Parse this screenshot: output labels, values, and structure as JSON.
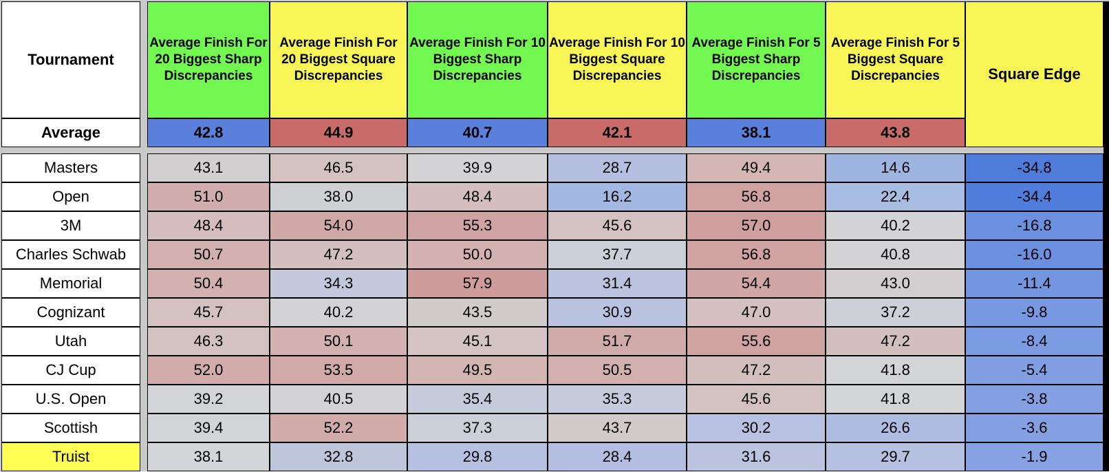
{
  "table": {
    "corner_header": "Tournament",
    "average_label": "Average",
    "square_edge_label": "Square Edge",
    "columns": [
      {
        "label": "Average Finish For 20 Biggest Sharp Discrepancies",
        "header_bg": "#72F850",
        "average": "42.8",
        "average_bg": "#5A80DC"
      },
      {
        "label": "Average Finish For 20 Biggest Square Discrepancies",
        "header_bg": "#F8F657",
        "average": "44.9",
        "average_bg": "#C96C69"
      },
      {
        "label": "Average Finish For 10 Biggest Sharp Discrepancies",
        "header_bg": "#72F850",
        "average": "40.7",
        "average_bg": "#5A80DC"
      },
      {
        "label": "Average Finish For 10 Biggest Square Discrepancies",
        "header_bg": "#F8F657",
        "average": "42.1",
        "average_bg": "#C96C69"
      },
      {
        "label": "Average Finish For 5 Biggest Sharp Discrepancies",
        "header_bg": "#72F850",
        "average": "38.1",
        "average_bg": "#5A80DC"
      },
      {
        "label": "Average Finish For 5 Biggest Square Discrepancies",
        "header_bg": "#F8F657",
        "average": "43.8",
        "average_bg": "#C96C69"
      }
    ],
    "square_edge_header_bg": "#F8F657",
    "rows": [
      {
        "tournament": "Masters",
        "label_bg": "#FFFFFF",
        "cells": [
          {
            "v": "43.1",
            "bg": "#D2CFD0"
          },
          {
            "v": "46.5",
            "bg": "#D4C1C1"
          },
          {
            "v": "39.9",
            "bg": "#D3D3D6"
          },
          {
            "v": "28.7",
            "bg": "#B5BFE0"
          },
          {
            "v": "49.4",
            "bg": "#D4B6B5"
          },
          {
            "v": "14.6",
            "bg": "#9EB5E1"
          }
        ],
        "square_edge": {
          "v": "-34.8",
          "bg": "#4F7CDB"
        }
      },
      {
        "tournament": "Open",
        "label_bg": "#FFFFFF",
        "cells": [
          {
            "v": "51.0",
            "bg": "#D1AEAD"
          },
          {
            "v": "38.0",
            "bg": "#CED0D4"
          },
          {
            "v": "48.4",
            "bg": "#D5BFBE"
          },
          {
            "v": "16.2",
            "bg": "#A2B8E1"
          },
          {
            "v": "56.8",
            "bg": "#D0A2A1"
          },
          {
            "v": "22.4",
            "bg": "#A9BDE2"
          }
        ],
        "square_edge": {
          "v": "-34.4",
          "bg": "#507CDB"
        }
      },
      {
        "tournament": "3M",
        "label_bg": "#FFFFFF",
        "cells": [
          {
            "v": "48.4",
            "bg": "#D4BDBC"
          },
          {
            "v": "54.0",
            "bg": "#D0A8A7"
          },
          {
            "v": "55.3",
            "bg": "#CFA3A3"
          },
          {
            "v": "45.6",
            "bg": "#D4C2C2"
          },
          {
            "v": "57.0",
            "bg": "#CF9F9F"
          },
          {
            "v": "40.2",
            "bg": "#D3D2D4"
          }
        ],
        "square_edge": {
          "v": "-16.8",
          "bg": "#6B90E0"
        }
      },
      {
        "tournament": "Charles Schwab",
        "label_bg": "#FFFFFF",
        "cells": [
          {
            "v": "50.7",
            "bg": "#D2B0AF"
          },
          {
            "v": "47.2",
            "bg": "#D4BFBF"
          },
          {
            "v": "50.0",
            "bg": "#D2B1B0"
          },
          {
            "v": "37.7",
            "bg": "#CBCFD7"
          },
          {
            "v": "56.8",
            "bg": "#D0A2A1"
          },
          {
            "v": "40.8",
            "bg": "#D3D3D5"
          }
        ],
        "square_edge": {
          "v": "-16.0",
          "bg": "#6C90E0"
        }
      },
      {
        "tournament": "Memorial",
        "label_bg": "#FFFFFF",
        "cells": [
          {
            "v": "50.4",
            "bg": "#D2B1B0"
          },
          {
            "v": "34.3",
            "bg": "#C3C8DC"
          },
          {
            "v": "57.9",
            "bg": "#CE9C9B"
          },
          {
            "v": "31.4",
            "bg": "#BBC3DF"
          },
          {
            "v": "54.4",
            "bg": "#D0A7A6"
          },
          {
            "v": "43.0",
            "bg": "#D2CED0"
          }
        ],
        "square_edge": {
          "v": "-11.4",
          "bg": "#7496E1"
        }
      },
      {
        "tournament": "Cognizant",
        "label_bg": "#FFFFFF",
        "cells": [
          {
            "v": "45.7",
            "bg": "#D4C1C1"
          },
          {
            "v": "40.2",
            "bg": "#D3D2D4"
          },
          {
            "v": "43.5",
            "bg": "#D2CBCC"
          },
          {
            "v": "30.9",
            "bg": "#B9C2DF"
          },
          {
            "v": "47.0",
            "bg": "#D4C0C0"
          },
          {
            "v": "37.2",
            "bg": "#CDD1D7"
          }
        ],
        "square_edge": {
          "v": "-9.8",
          "bg": "#7899E1"
        }
      },
      {
        "tournament": "Utah",
        "label_bg": "#FFFFFF",
        "cells": [
          {
            "v": "46.3",
            "bg": "#D4C2C2"
          },
          {
            "v": "50.1",
            "bg": "#D2B1B0"
          },
          {
            "v": "45.1",
            "bg": "#D4C4C4"
          },
          {
            "v": "51.7",
            "bg": "#D1ABAA"
          },
          {
            "v": "55.6",
            "bg": "#CFA3A2"
          },
          {
            "v": "47.2",
            "bg": "#D4BFBF"
          }
        ],
        "square_edge": {
          "v": "-8.4",
          "bg": "#7B9BE2"
        }
      },
      {
        "tournament": "CJ Cup",
        "label_bg": "#FFFFFF",
        "cells": [
          {
            "v": "52.0",
            "bg": "#D1ACAB"
          },
          {
            "v": "53.5",
            "bg": "#D0A9A8"
          },
          {
            "v": "49.5",
            "bg": "#D3B5B4"
          },
          {
            "v": "50.5",
            "bg": "#D2B0AF"
          },
          {
            "v": "47.2",
            "bg": "#D4BFBF"
          },
          {
            "v": "41.8",
            "bg": "#D3D4D6"
          }
        ],
        "square_edge": {
          "v": "-5.4",
          "bg": "#819EE2"
        }
      },
      {
        "tournament": "U.S. Open",
        "label_bg": "#FFFFFF",
        "cells": [
          {
            "v": "39.2",
            "bg": "#D3D4D7"
          },
          {
            "v": "40.5",
            "bg": "#D3D2D4"
          },
          {
            "v": "35.4",
            "bg": "#C5CBDA"
          },
          {
            "v": "35.3",
            "bg": "#C5CBDA"
          },
          {
            "v": "45.6",
            "bg": "#D4C2C2"
          },
          {
            "v": "41.8",
            "bg": "#D3D4D6"
          }
        ],
        "square_edge": {
          "v": "-3.8",
          "bg": "#84A0E2"
        }
      },
      {
        "tournament": "Scottish",
        "label_bg": "#FFFFFF",
        "cells": [
          {
            "v": "39.4",
            "bg": "#D3D4D7"
          },
          {
            "v": "52.2",
            "bg": "#D1ABAA"
          },
          {
            "v": "37.3",
            "bg": "#CBCFD7"
          },
          {
            "v": "43.7",
            "bg": "#D2C9CA"
          },
          {
            "v": "30.2",
            "bg": "#B8C1DF"
          },
          {
            "v": "26.6",
            "bg": "#AFBCE1"
          }
        ],
        "square_edge": {
          "v": "-3.6",
          "bg": "#84A0E2"
        }
      },
      {
        "tournament": "Truist",
        "label_bg": "#FEFE54",
        "cells": [
          {
            "v": "38.1",
            "bg": "#D3D5D8"
          },
          {
            "v": "32.8",
            "bg": "#BFC6DC"
          },
          {
            "v": "29.8",
            "bg": "#B6C0E0"
          },
          {
            "v": "28.4",
            "bg": "#B3BEE0"
          },
          {
            "v": "31.6",
            "bg": "#BBC3DF"
          },
          {
            "v": "29.7",
            "bg": "#B6C0E0"
          }
        ],
        "square_edge": {
          "v": "-1.9",
          "bg": "#86A2E2"
        }
      }
    ],
    "chrome_colors": {
      "frozen_pane_divider": "#C9C9C9",
      "right_edge_strip": "#000000",
      "grid_line": "#000000"
    }
  }
}
